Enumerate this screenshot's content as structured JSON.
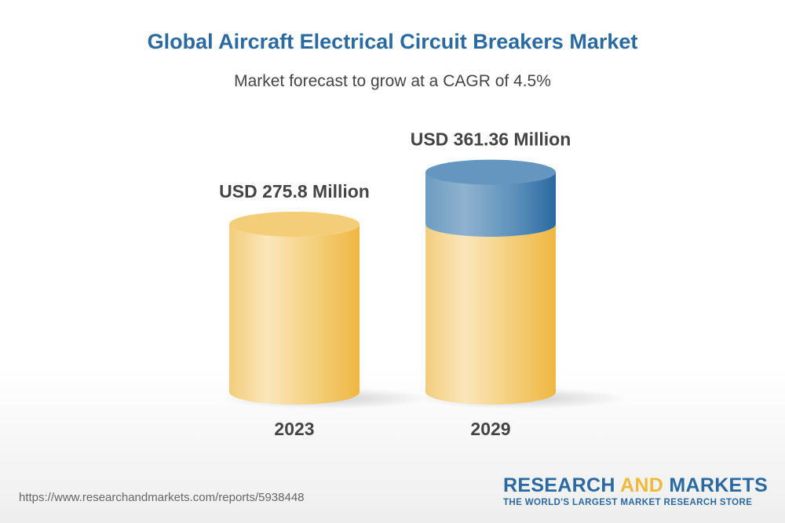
{
  "header": {
    "title": "Global Aircraft Electrical Circuit Breakers Market",
    "subtitle": "Market forecast to grow at a CAGR of 4.5%"
  },
  "chart_data": {
    "type": "bar",
    "style": "3d-cylinder",
    "categories": [
      "2023",
      "2029"
    ],
    "values": [
      275.8,
      361.36
    ],
    "data_labels": [
      "USD 275.8 Million",
      "USD 361.36 Million"
    ],
    "unit": "USD Million",
    "colors": {
      "base": "#f0b93a",
      "base_light": "#fbe6bb",
      "growth": "#2a6aa0",
      "growth_light": "#8fb2cf"
    },
    "grid": false
  },
  "footer": {
    "url": "https://www.researchandmarkets.com/reports/5938448",
    "logo_part1": "RESEARCH",
    "logo_part2": "AND",
    "logo_part3": "MARKETS",
    "logo_tagline": "THE WORLD'S LARGEST MARKET RESEARCH STORE"
  }
}
